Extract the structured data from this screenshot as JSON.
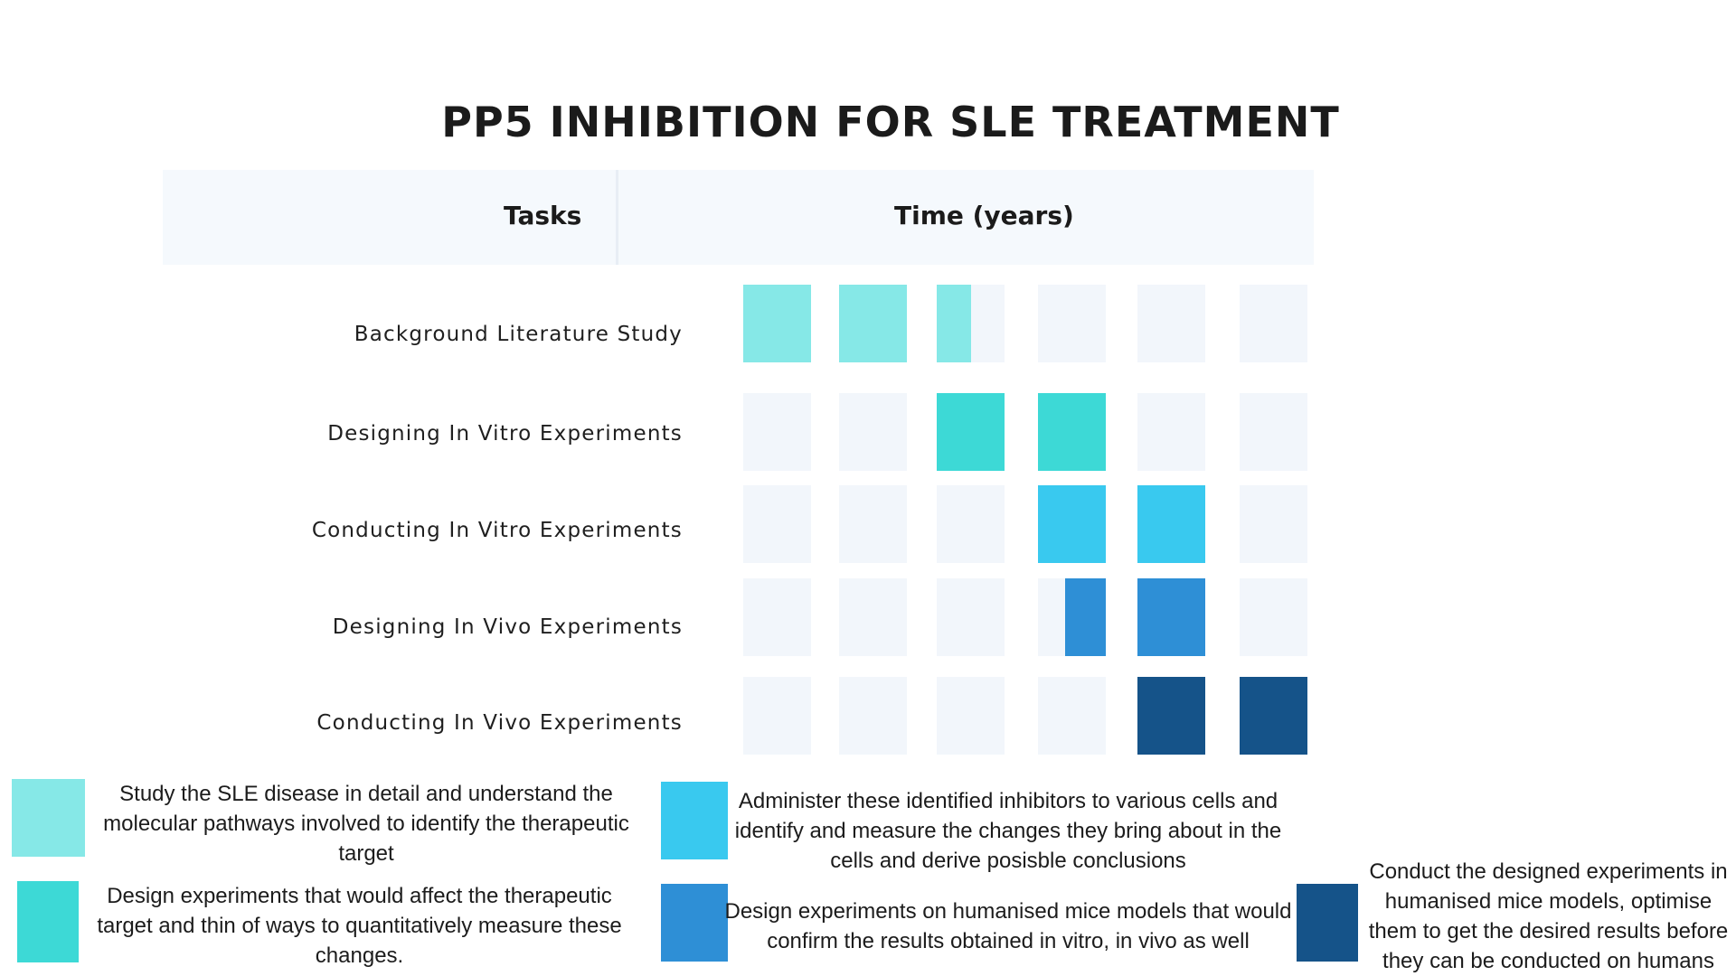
{
  "title": "PP5 INHIBITION FOR SLE TREATMENT",
  "header": {
    "tasks_label": "Tasks",
    "time_label": "Time (years)"
  },
  "colors": {
    "empty": "#f2f6fb",
    "phase1": "#86e8e7",
    "phase2": "#3dd9d6",
    "phase3": "#39c9ef",
    "phase4": "#2e8fd6",
    "phase5": "#155389"
  },
  "chart_data": {
    "type": "table",
    "title": "PP5 INHIBITION FOR SLE TREATMENT",
    "xlabel": "Time (years)",
    "ylabel": "Tasks",
    "time_slots": 6,
    "tasks": [
      {
        "name": "Background Literature Study",
        "color_key": "phase1",
        "filled": [
          1,
          1,
          0.5,
          0,
          0,
          0
        ]
      },
      {
        "name": "Designing In Vitro Experiments",
        "color_key": "phase2",
        "filled": [
          0,
          0,
          1,
          1,
          0,
          0
        ]
      },
      {
        "name": "Conducting In Vitro Experiments",
        "color_key": "phase3",
        "filled": [
          0,
          0,
          0,
          1,
          1,
          0
        ]
      },
      {
        "name": "Designing In Vivo Experiments",
        "color_key": "phase4",
        "filled": [
          0,
          0,
          0,
          0.6,
          1,
          0
        ]
      },
      {
        "name": "Conducting In Vivo Experiments",
        "color_key": "phase5",
        "filled": [
          0,
          0,
          0,
          0,
          1,
          1
        ]
      }
    ]
  },
  "legend": [
    {
      "color_key": "phase1",
      "text": "Study the SLE disease in detail and understand the molecular pathways involved to identify the therapeutic target"
    },
    {
      "color_key": "phase2",
      "text": "Design experiments that would  affect the therapeutic target and thin of ways to quantitatively measure these changes."
    },
    {
      "color_key": "phase3",
      "text": "Administer these identified inhibitors to various cells and identify and measure the changes they bring about in the cells and derive posisble conclusions"
    },
    {
      "color_key": "phase4",
      "text": "Design experiments on humanised mice models that would confirm the results obtained in vitro, in vivo as well"
    },
    {
      "color_key": "phase5",
      "text": "Conduct the designed experiments in humanised mice models, optimise them to get the desired results before they can be conducted on humans"
    }
  ]
}
